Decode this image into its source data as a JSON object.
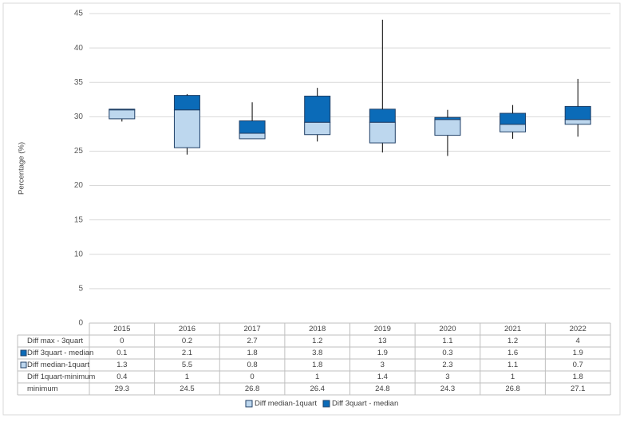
{
  "chart_data": {
    "type": "box",
    "y_label": "Percentage (%)",
    "categories": [
      "2015",
      "2016",
      "2017",
      "2018",
      "2019",
      "2020",
      "2021",
      "2022"
    ],
    "series": [
      {
        "name": "minimum",
        "values": [
          29.3,
          24.5,
          26.8,
          26.4,
          24.8,
          24.3,
          26.8,
          27.1
        ]
      },
      {
        "name": "Diff 1quart-minimum",
        "values": [
          0.4,
          1,
          0,
          1,
          1.4,
          3,
          1,
          1.8
        ]
      },
      {
        "name": "Diff median-1quart",
        "color": "#bdd7ee",
        "values": [
          1.3,
          5.5,
          0.8,
          1.8,
          3,
          2.3,
          1.1,
          0.7
        ]
      },
      {
        "name": "Diff 3quart - median",
        "color": "#0b6bb8",
        "values": [
          0.1,
          2.1,
          1.8,
          3.8,
          1.9,
          0.3,
          1.6,
          1.9
        ]
      },
      {
        "name": "Diff max - 3quart",
        "values": [
          0,
          0.2,
          2.7,
          1.2,
          13,
          1.1,
          1.2,
          4
        ]
      }
    ],
    "whisker_color": "#000000",
    "box_border_color": "#1f3f66",
    "ylim": [
      0,
      45
    ],
    "yticks": [
      0,
      5,
      10,
      15,
      20,
      25,
      30,
      35,
      40,
      45
    ],
    "grid": true,
    "legend": "bottom"
  }
}
